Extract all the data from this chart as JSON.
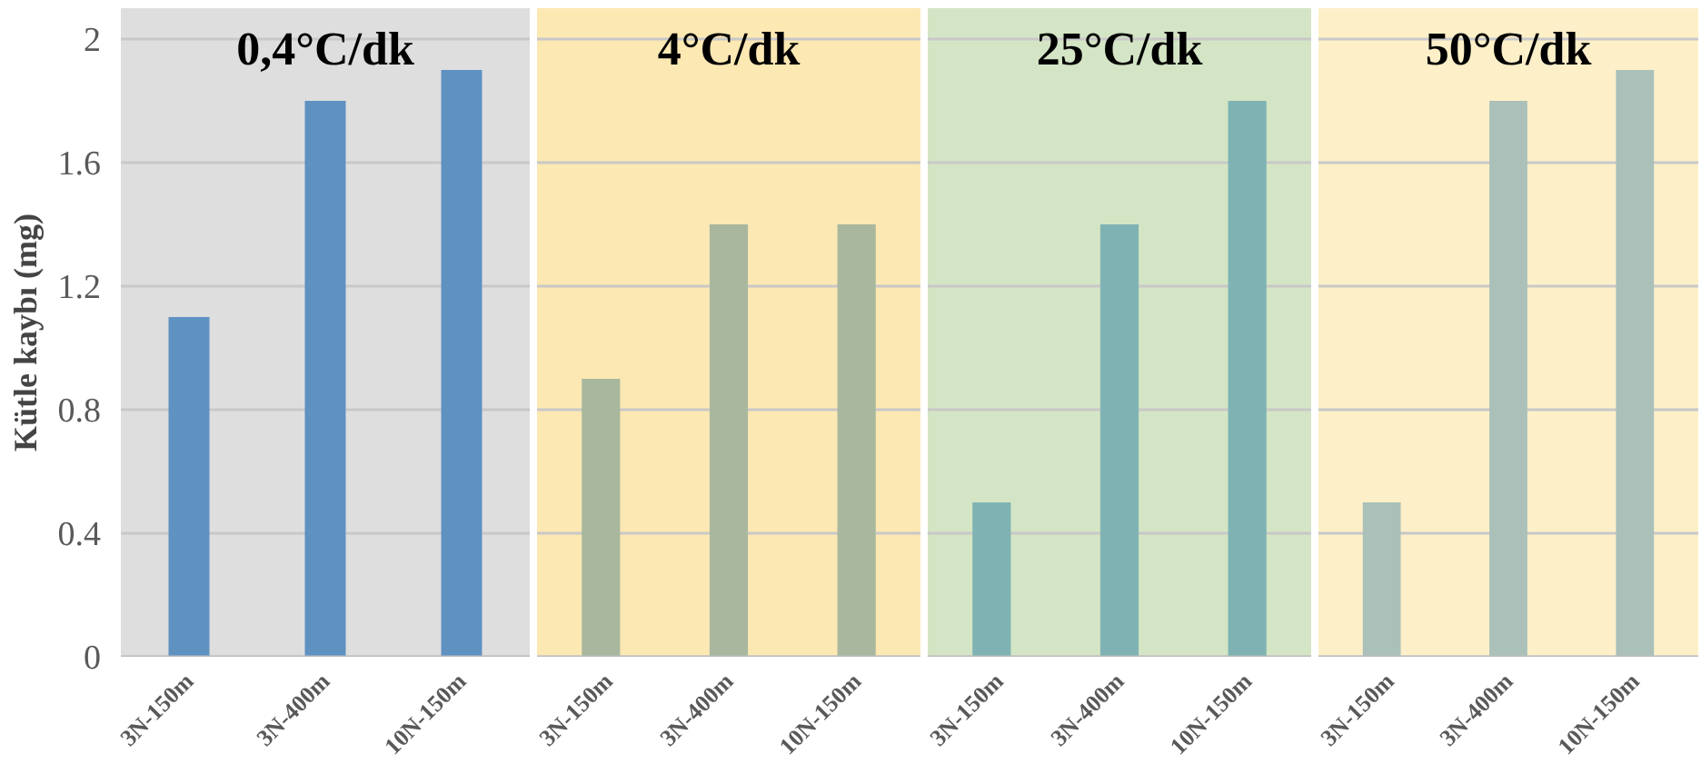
{
  "chart_data": [
    {
      "type": "bar",
      "title": "0,4°C/dk",
      "ylabel": "Kütle kaybı (mg)",
      "categories": [
        "3N-150m",
        "3N-400m",
        "10N-150m"
      ],
      "values": [
        1.1,
        1.8,
        1.9
      ],
      "color": "#5f91c1",
      "ylim": [
        0,
        2.1
      ],
      "yticks": [
        0,
        0.4,
        0.8,
        1.2,
        1.6,
        2
      ],
      "grid": "y",
      "bands": [
        {
          "axis": "y",
          "from": 0,
          "to": 2.1,
          "color": "#dedede"
        }
      ]
    },
    {
      "type": "bar",
      "title": "4°C/dk",
      "categories": [
        "3N-150m",
        "3N-400m",
        "10N-150m"
      ],
      "values": [
        0.9,
        1.4,
        1.4
      ],
      "color": "#a9b79e",
      "ylim": [
        0,
        2.1
      ],
      "yticks": [
        0,
        0.4,
        0.8,
        1.2,
        1.6,
        2
      ],
      "grid": "y",
      "tick_labels": "x",
      "bands": [
        {
          "axis": "y",
          "from": 0,
          "to": 2.1,
          "color": "#fce8b3"
        }
      ]
    },
    {
      "type": "bar",
      "title": "25°C/dk",
      "categories": [
        "3N-150m",
        "3N-400m",
        "10N-150m"
      ],
      "values": [
        0.5,
        1.4,
        1.8
      ],
      "color": "#7fb3b3",
      "ylim": [
        0,
        2.1
      ],
      "yticks": [
        0,
        0.4,
        0.8,
        1.2,
        1.6,
        2
      ],
      "grid": "y",
      "tick_labels": "x",
      "bands": [
        {
          "axis": "y",
          "from": 0,
          "to": 2.1,
          "color": "#d4e5c5"
        }
      ]
    },
    {
      "type": "bar",
      "title": "50°C/dk",
      "categories": [
        "3N-150m",
        "3N-400m",
        "10N-150m"
      ],
      "values": [
        0.5,
        1.8,
        1.9
      ],
      "color": "#aac0b9",
      "ylim": [
        0,
        2.1
      ],
      "yticks": [
        0,
        0.4,
        0.8,
        1.2,
        1.6,
        2
      ],
      "grid": "y",
      "tick_labels": "x",
      "bands": [
        {
          "axis": "y",
          "from": 0,
          "to": 2.1,
          "color": "#fdf0c9"
        }
      ]
    }
  ]
}
